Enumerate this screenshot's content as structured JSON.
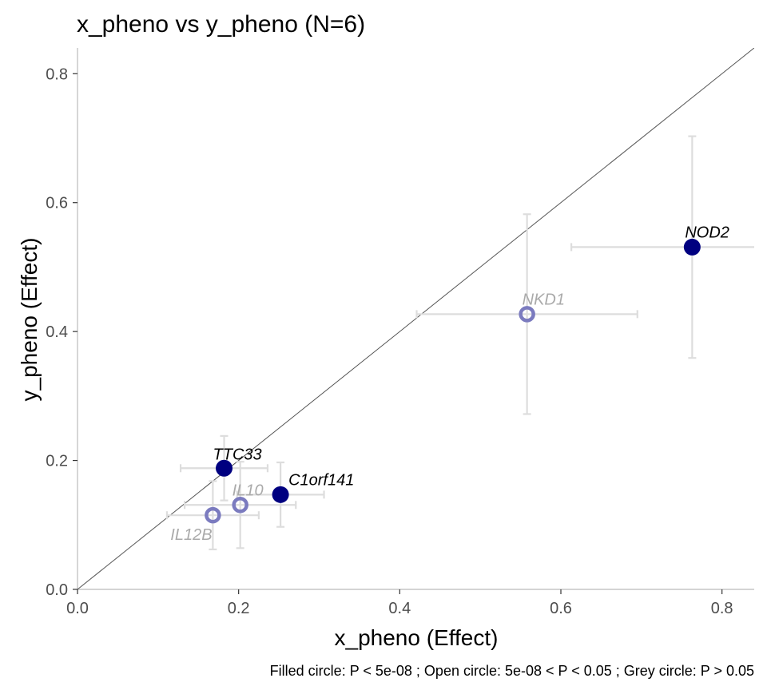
{
  "chart_data": {
    "type": "scatter",
    "title": "x_pheno vs y_pheno (N=6)",
    "xlabel": "x_pheno (Effect)",
    "ylabel": "y_pheno  (Effect)",
    "caption": "Filled circle: P < 5e-08 ; Open circle: 5e-08 < P < 0.05 ; Grey circle: P > 0.05",
    "xlim": [
      0,
      0.84
    ],
    "ylim": [
      0,
      0.84
    ],
    "x_ticks": [
      {
        "value": 0.0,
        "label": "0.0"
      },
      {
        "value": 0.2,
        "label": "0.2"
      },
      {
        "value": 0.4,
        "label": "0.4"
      },
      {
        "value": 0.6,
        "label": "0.6"
      },
      {
        "value": 0.8,
        "label": "0.8"
      }
    ],
    "y_ticks": [
      {
        "value": 0.0,
        "label": "0.0"
      },
      {
        "value": 0.2,
        "label": "0.2"
      },
      {
        "value": 0.4,
        "label": "0.4"
      },
      {
        "value": 0.6,
        "label": "0.6"
      },
      {
        "value": 0.8,
        "label": "0.8"
      }
    ],
    "reference_line": "y = x",
    "grid": false,
    "colors": {
      "filled": "#000080",
      "open": "#7b7bbf",
      "error_bar": "#dddddd",
      "reference": "#555555",
      "sig_label": "#000000",
      "nonsig_label": "#aaaaaa"
    },
    "points": [
      {
        "label": "NOD2",
        "x": 0.763,
        "y": 0.531,
        "x_lo": 0.613,
        "x_hi": 0.913,
        "y_lo": 0.359,
        "y_hi": 0.703,
        "marker": "filled"
      },
      {
        "label": "NKD1",
        "x": 0.558,
        "y": 0.427,
        "x_lo": 0.421,
        "x_hi": 0.695,
        "y_lo": 0.272,
        "y_hi": 0.582,
        "marker": "open"
      },
      {
        "label": "TTC33",
        "x": 0.182,
        "y": 0.188,
        "x_lo": 0.128,
        "x_hi": 0.236,
        "y_lo": 0.138,
        "y_hi": 0.238,
        "marker": "filled"
      },
      {
        "label": "C1orf141",
        "x": 0.252,
        "y": 0.147,
        "x_lo": 0.198,
        "x_hi": 0.306,
        "y_lo": 0.097,
        "y_hi": 0.197,
        "marker": "filled"
      },
      {
        "label": "IL10",
        "x": 0.202,
        "y": 0.131,
        "x_lo": 0.133,
        "x_hi": 0.271,
        "y_lo": 0.064,
        "y_hi": 0.198,
        "marker": "open"
      },
      {
        "label": "IL12B",
        "x": 0.168,
        "y": 0.115,
        "x_lo": 0.111,
        "x_hi": 0.225,
        "y_lo": 0.062,
        "y_hi": 0.168,
        "marker": "open"
      }
    ]
  }
}
